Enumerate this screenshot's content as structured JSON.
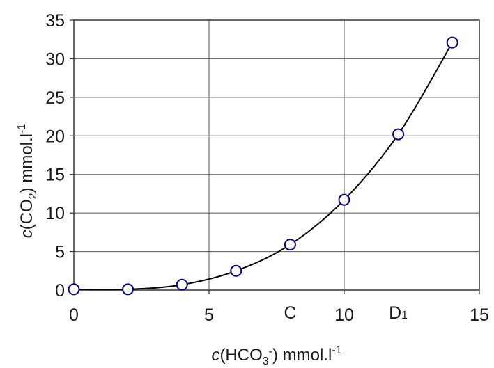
{
  "chart_data": {
    "type": "scatter",
    "title": "",
    "xlabel": {
      "prefix": "c",
      "open": "(HCO",
      "sub": "3",
      "sup": "-",
      "close": ") mmol.l",
      "unit_sup": "-1"
    },
    "ylabel": {
      "prefix": "c",
      "open": "(CO",
      "sub": "2",
      "close": ") mmol.l",
      "unit_sup": "-1"
    },
    "xlim": [
      0,
      15
    ],
    "ylim": [
      0,
      35
    ],
    "x_ticks": [
      0,
      5,
      10,
      15
    ],
    "y_ticks": [
      0,
      5,
      10,
      15,
      20,
      25,
      30,
      35
    ],
    "grid": true,
    "series": [
      {
        "marker": "open-circle",
        "color": "#00008b",
        "x": [
          0,
          2,
          4,
          6,
          8,
          10,
          12,
          14
        ],
        "y": [
          0.1,
          0.1,
          0.7,
          2.5,
          5.9,
          11.7,
          20.2,
          32.1
        ]
      }
    ],
    "fit_curve": {
      "type": "smooth",
      "color": "#000000"
    },
    "annotations": [
      {
        "text": "C",
        "x": 8
      },
      {
        "text": "D",
        "sub": "1",
        "x": 12
      }
    ]
  }
}
